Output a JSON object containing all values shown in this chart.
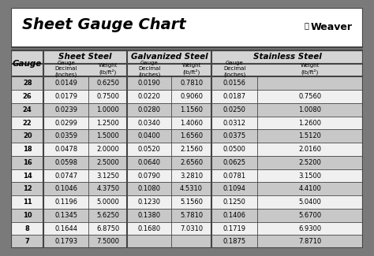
{
  "title": "Sheet Gauge Chart",
  "outer_bg": "#7a7a7a",
  "inner_bg": "#ffffff",
  "row_bg_dark": "#c8c8c8",
  "row_bg_light": "#f0f0f0",
  "header_bg": "#ffffff",
  "border_color": "#444444",
  "gauges": [
    28,
    26,
    24,
    22,
    20,
    18,
    16,
    14,
    12,
    11,
    10,
    8,
    7
  ],
  "sheet_steel": {
    "label": "Sheet Steel",
    "decimal": [
      "0.0149",
      "0.0179",
      "0.0239",
      "0.0299",
      "0.0359",
      "0.0478",
      "0.0598",
      "0.0747",
      "0.1046",
      "0.1196",
      "0.1345",
      "0.1644",
      "0.1793"
    ],
    "weight": [
      "0.6250",
      "0.7500",
      "1.0000",
      "1.2500",
      "1.5000",
      "2.0000",
      "2.5000",
      "3.1250",
      "4.3750",
      "5.0000",
      "5.6250",
      "6.8750",
      "7.5000"
    ]
  },
  "galvanized_steel": {
    "label": "Galvanized Steel",
    "decimal": [
      "0.0190",
      "0.0220",
      "0.0280",
      "0.0340",
      "0.0400",
      "0.0520",
      "0.0640",
      "0.0790",
      "0.1080",
      "0.1230",
      "0.1380",
      "0.1680",
      ""
    ],
    "weight": [
      "0.7810",
      "0.9060",
      "1.1560",
      "1.4060",
      "1.6560",
      "2.1560",
      "2.6560",
      "3.2810",
      "4.5310",
      "5.1560",
      "5.7810",
      "7.0310",
      ""
    ]
  },
  "stainless_steel": {
    "label": "Stainless Steel",
    "decimal": [
      "0.0156",
      "0.0187",
      "0.0250",
      "0.0312",
      "0.0375",
      "0.0500",
      "0.0625",
      "0.0781",
      "0.1094",
      "0.1250",
      "0.1406",
      "0.1719",
      "0.1875"
    ],
    "weight": [
      "",
      "0.7560",
      "1.0080",
      "1.2600",
      "1.5120",
      "2.0160",
      "2.5200",
      "3.1500",
      "4.4100",
      "5.0400",
      "5.6700",
      "6.9300",
      "7.8710"
    ]
  },
  "fig_width": 4.74,
  "fig_height": 3.25,
  "dpi": 100
}
